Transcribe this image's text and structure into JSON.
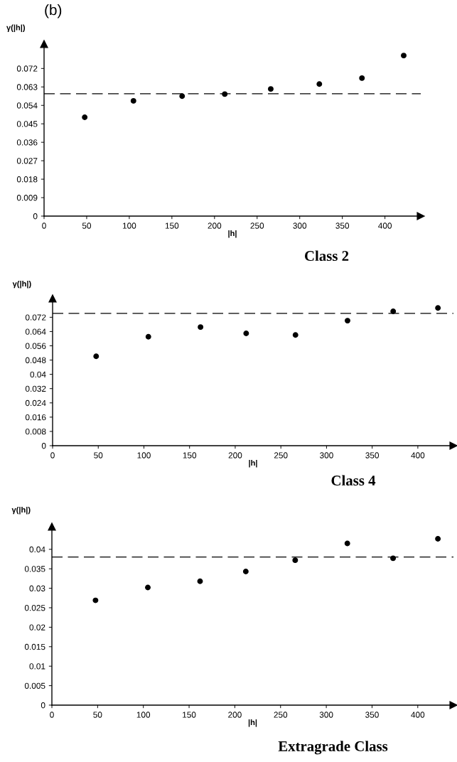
{
  "chart_data": [
    {
      "type": "scatter",
      "title": "Class 2",
      "xlabel": "|h|",
      "ylabel": "γ(|h|)",
      "annotations": [
        "(b)"
      ],
      "x": [
        47.7,
        104.9,
        162,
        212,
        266,
        323,
        373,
        422
      ],
      "series": [
        {
          "color": "#000000",
          "values": [
            0.0482,
            0.0562,
            0.0585,
            0.0595,
            0.062,
            0.0644,
            0.0673,
            0.0783
          ]
        }
      ],
      "xlim": [
        0,
        442
      ],
      "xticks": [
        0,
        50,
        100,
        150,
        200,
        250,
        300,
        350,
        400
      ],
      "ylim": [
        0,
        0.0839
      ],
      "yticks": [
        0,
        0.009,
        0.018,
        0.027,
        0.036,
        0.045,
        0.054,
        0.063,
        0.072
      ],
      "ref_lines": [
        {
          "axis": "y",
          "value": 0.0597,
          "color": "#000000",
          "line_style": "dashed"
        }
      ],
      "marker": "circle",
      "grid": false,
      "legend": false
    },
    {
      "type": "scatter",
      "title": "Class 4",
      "xlabel": "|h|",
      "ylabel": "γ(|h|)",
      "x": [
        47.7,
        104.9,
        162,
        212,
        266,
        323,
        373,
        422
      ],
      "series": [
        {
          "color": "#000000",
          "values": [
            0.0501,
            0.0611,
            0.0665,
            0.063,
            0.0621,
            0.0701,
            0.0753,
            0.0772
          ]
        }
      ],
      "xlim": [
        0,
        439
      ],
      "xticks": [
        0,
        50,
        100,
        150,
        200,
        250,
        300,
        350,
        400
      ],
      "ylim": [
        0,
        0.0825
      ],
      "yticks": [
        0,
        0.008,
        0.016,
        0.024,
        0.032,
        0.04,
        0.048,
        0.056,
        0.064,
        0.072
      ],
      "ref_lines": [
        {
          "axis": "y",
          "value": 0.0742,
          "color": "#000000",
          "line_style": "dashed"
        }
      ],
      "marker": "circle",
      "grid": false,
      "legend": false
    },
    {
      "type": "scatter",
      "title": "Extragrade Class",
      "xlabel": "|h|",
      "ylabel": "γ(|h|)",
      "x": [
        47.7,
        104.9,
        162,
        212,
        266,
        323,
        373,
        422
      ],
      "series": [
        {
          "color": "#000000",
          "values": [
            0.0269,
            0.0302,
            0.0318,
            0.0343,
            0.0372,
            0.0415,
            0.0377,
            0.0427
          ]
        }
      ],
      "xlim": [
        0,
        439
      ],
      "xticks": [
        0,
        50,
        100,
        150,
        200,
        250,
        300,
        350,
        400
      ],
      "ylim": [
        0,
        0.0458
      ],
      "yticks": [
        0,
        0.005,
        0.01,
        0.015,
        0.02,
        0.025,
        0.03,
        0.035,
        0.04
      ],
      "ref_lines": [
        {
          "axis": "y",
          "value": 0.038,
          "color": "#000000",
          "line_style": "dashed"
        }
      ],
      "marker": "circle",
      "grid": false,
      "legend": false
    }
  ]
}
